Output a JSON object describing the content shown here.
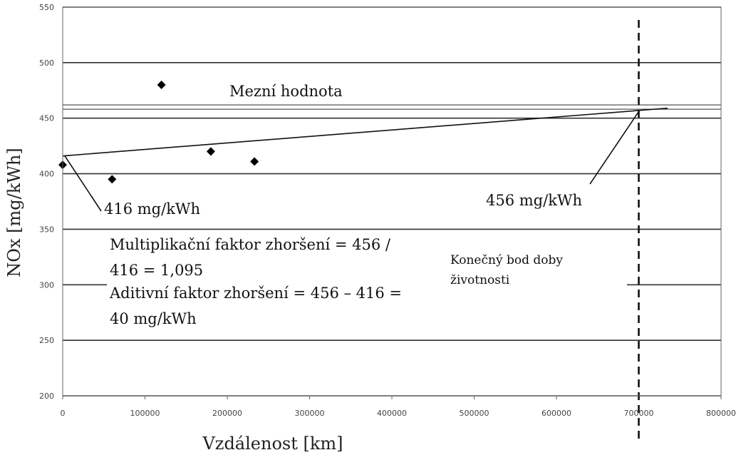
{
  "chart_data": {
    "type": "scatter",
    "title": "",
    "xlabel": "Vzdálenost [km]",
    "ylabel": "NOx [mg/kWh]",
    "xlim": [
      0,
      800000
    ],
    "ylim": [
      200,
      550
    ],
    "xticks": [
      0,
      100000,
      200000,
      300000,
      400000,
      500000,
      600000,
      700000,
      800000
    ],
    "yticks": [
      200,
      250,
      300,
      350,
      400,
      450,
      500,
      550
    ],
    "grid": "horizontal",
    "points": [
      {
        "x": 0,
        "y": 408
      },
      {
        "x": 60000,
        "y": 395
      },
      {
        "x": 120000,
        "y": 480
      },
      {
        "x": 180000,
        "y": 420
      },
      {
        "x": 233000,
        "y": 411
      }
    ],
    "trend_line": {
      "x": [
        0,
        735000
      ],
      "y": [
        416,
        459
      ]
    },
    "limit_line": {
      "value": 460,
      "label": "Mezní hodnota"
    },
    "end_of_life_line": {
      "x": 700000,
      "label_lines": [
        "Konečný bod doby",
        "životnosti"
      ]
    },
    "annotations": {
      "start_value": "416 mg/kWh",
      "end_value": "456 mg/kWh",
      "multiplicative_lines": [
        "Multiplikační faktor zhoršení = 456 /",
        "416 = 1,095"
      ],
      "additive_lines": [
        "Aditivní faktor zhoršení = 456 – 416 =",
        "40 mg/kWh"
      ]
    }
  }
}
